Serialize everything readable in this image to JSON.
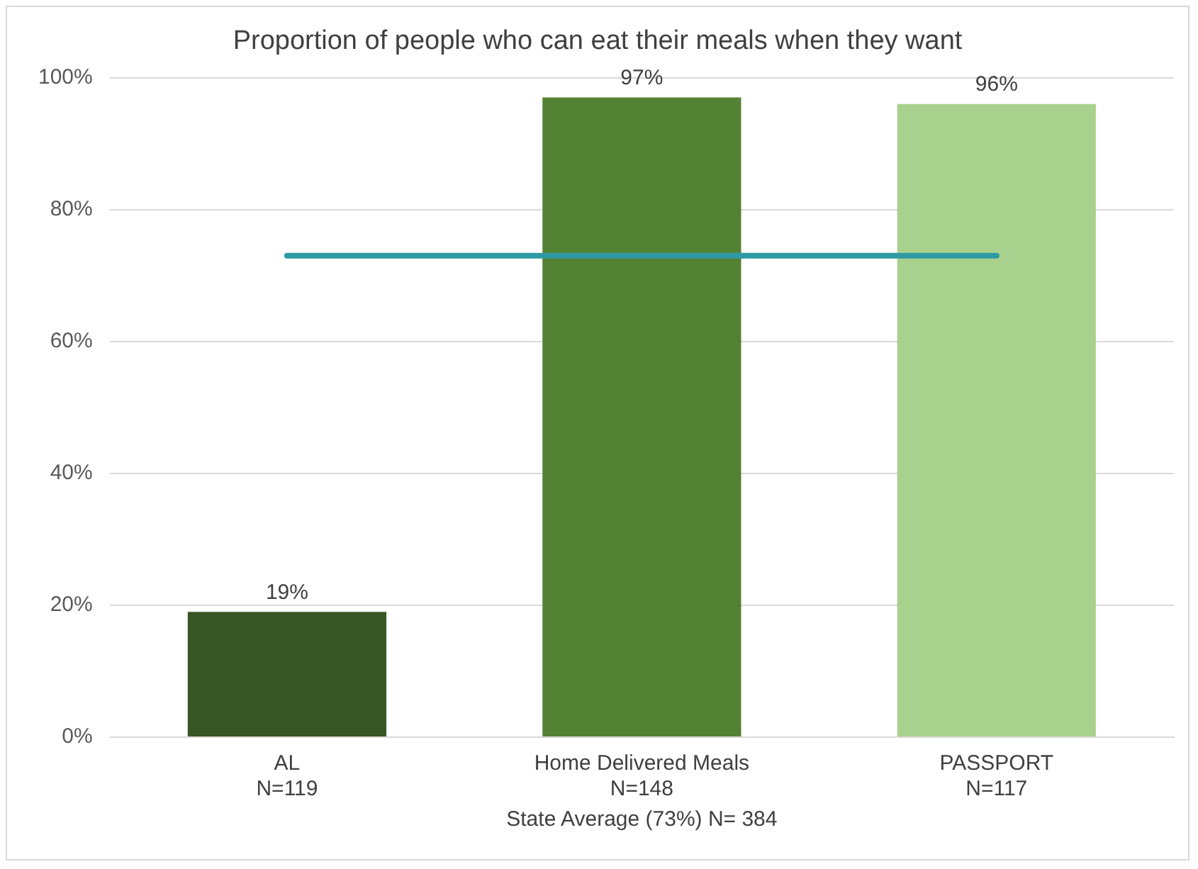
{
  "chart_data": {
    "type": "bar",
    "title": "Proportion of people who can eat their meals when they want",
    "categories": [
      "AL\nN=119",
      "Home Delivered Meals\nN=148",
      "PASSPORT\nN=117"
    ],
    "values": [
      19,
      97,
      96
    ],
    "colors": [
      "#375623",
      "#548235",
      "#a9d18e"
    ],
    "value_labels": [
      "19%",
      "97%",
      "96%"
    ],
    "ylim": [
      0,
      100
    ],
    "yticks": [
      {
        "value": 0,
        "label": "0%"
      },
      {
        "value": 20,
        "label": "20%"
      },
      {
        "value": 40,
        "label": "40%"
      },
      {
        "value": 60,
        "label": "60%"
      },
      {
        "value": 80,
        "label": "80%"
      },
      {
        "value": 100,
        "label": "100%"
      }
    ],
    "ref_lines": [
      {
        "axis": "y",
        "value": 73,
        "color": "#2e99a3"
      }
    ],
    "annotations": [
      "State Average (73%) N= 384"
    ],
    "grid": "y",
    "legend": false
  }
}
